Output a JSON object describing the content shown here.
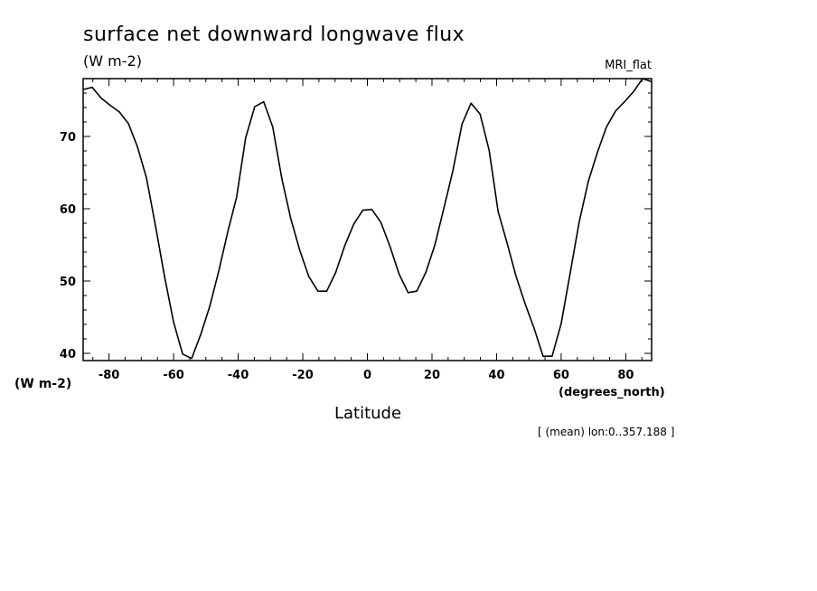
{
  "chart_data": {
    "type": "line",
    "title": "surface net downward longwave flux",
    "units_top": "(W m-2)",
    "model_label": "MRI_flat",
    "ylabel": "(W m-2)",
    "xlabel": "Latitude",
    "x_units": "(degrees_north)",
    "note": "[ (mean) lon:0..357.188 ]",
    "xlim": [
      -88,
      88
    ],
    "ylim": [
      39,
      78
    ],
    "x_ticks": [
      -80,
      -60,
      -40,
      -20,
      0,
      20,
      40,
      60,
      80
    ],
    "x_tick_labels": [
      "-80",
      "-60",
      "-40",
      "-20",
      "0",
      "20",
      "40",
      "60",
      "80"
    ],
    "y_ticks": [
      40,
      50,
      60,
      70
    ],
    "y_tick_labels": [
      "40",
      "50",
      "60",
      "70"
    ],
    "line_color": "#000000",
    "grid": false,
    "series": [
      {
        "x": [
          -87.9,
          -85.2,
          -82.4,
          -79.6,
          -76.8,
          -74.0,
          -71.2,
          -68.4,
          -65.6,
          -62.8,
          -60.0,
          -57.2,
          -54.4,
          -51.6,
          -48.8,
          -46.0,
          -43.3,
          -40.5,
          -37.7,
          -34.9,
          -32.1,
          -29.3,
          -26.5,
          -23.7,
          -20.9,
          -18.1,
          -15.3,
          -12.6,
          -9.8,
          -7.0,
          -4.2,
          -1.4,
          1.4,
          4.2,
          7.0,
          9.8,
          12.6,
          15.3,
          18.1,
          20.9,
          23.7,
          26.5,
          29.3,
          32.1,
          34.9,
          37.7,
          40.5,
          43.3,
          46.0,
          48.8,
          51.6,
          54.4,
          57.2,
          60.0,
          62.8,
          65.6,
          68.4,
          71.2,
          74.0,
          76.8,
          79.6,
          82.4,
          85.2,
          87.9
        ],
        "y": [
          76.5,
          76.8,
          75.3,
          74.3,
          73.4,
          71.8,
          68.6,
          64.3,
          57.6,
          50.6,
          44.3,
          39.9,
          39.3,
          42.6,
          46.5,
          51.4,
          56.7,
          61.6,
          69.8,
          74.1,
          74.8,
          71.3,
          64.2,
          58.6,
          54.2,
          50.6,
          48.6,
          48.6,
          51.2,
          54.9,
          57.9,
          59.8,
          59.9,
          58.1,
          54.8,
          51.0,
          48.4,
          48.6,
          51.2,
          55.0,
          60.1,
          65.3,
          71.7,
          74.6,
          73.1,
          68.1,
          59.6,
          55.2,
          50.7,
          46.9,
          43.5,
          39.6,
          39.6,
          44.1,
          51.1,
          58.2,
          63.8,
          67.8,
          71.3,
          73.5,
          74.8,
          76.2,
          78.0,
          77.6
        ]
      }
    ]
  }
}
